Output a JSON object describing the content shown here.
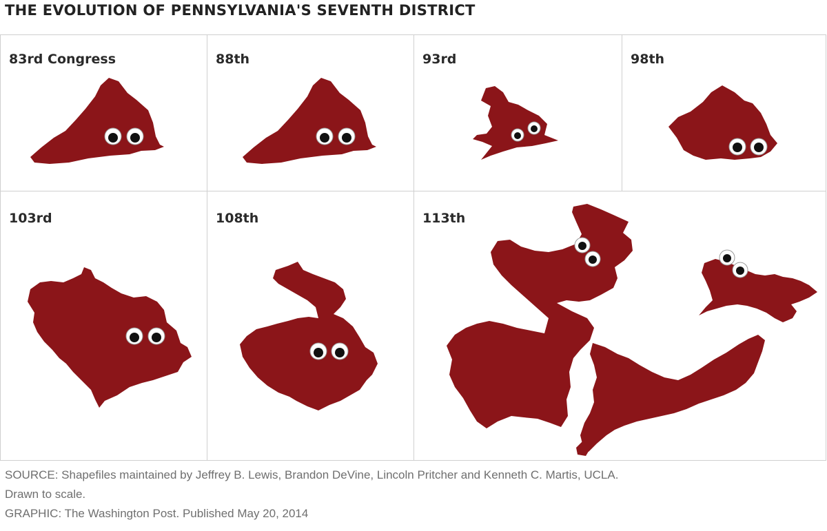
{
  "header": {
    "title": "THE EVOLUTION OF PENNSYLVANIA'S SEVENTH DISTRICT"
  },
  "panels": [
    {
      "label": "83rd Congress"
    },
    {
      "label": "88th"
    },
    {
      "label": "93rd"
    },
    {
      "label": "98th"
    },
    {
      "label": "103rd"
    },
    {
      "label": "108th"
    },
    {
      "label": "113th"
    }
  ],
  "footer": {
    "source_line1": "SOURCE: Shapefiles maintained by Jeffrey B. Lewis, Brandon DeVine, Lincoln Pritcher and Kenneth C. Martis, UCLA.",
    "source_line2": "Drawn to scale.",
    "credit": "GRAPHIC: The Washington Post. Published May 20, 2014"
  },
  "colors": {
    "district_fill": "#8b1519",
    "grid_lines": "#cfcfcf"
  }
}
